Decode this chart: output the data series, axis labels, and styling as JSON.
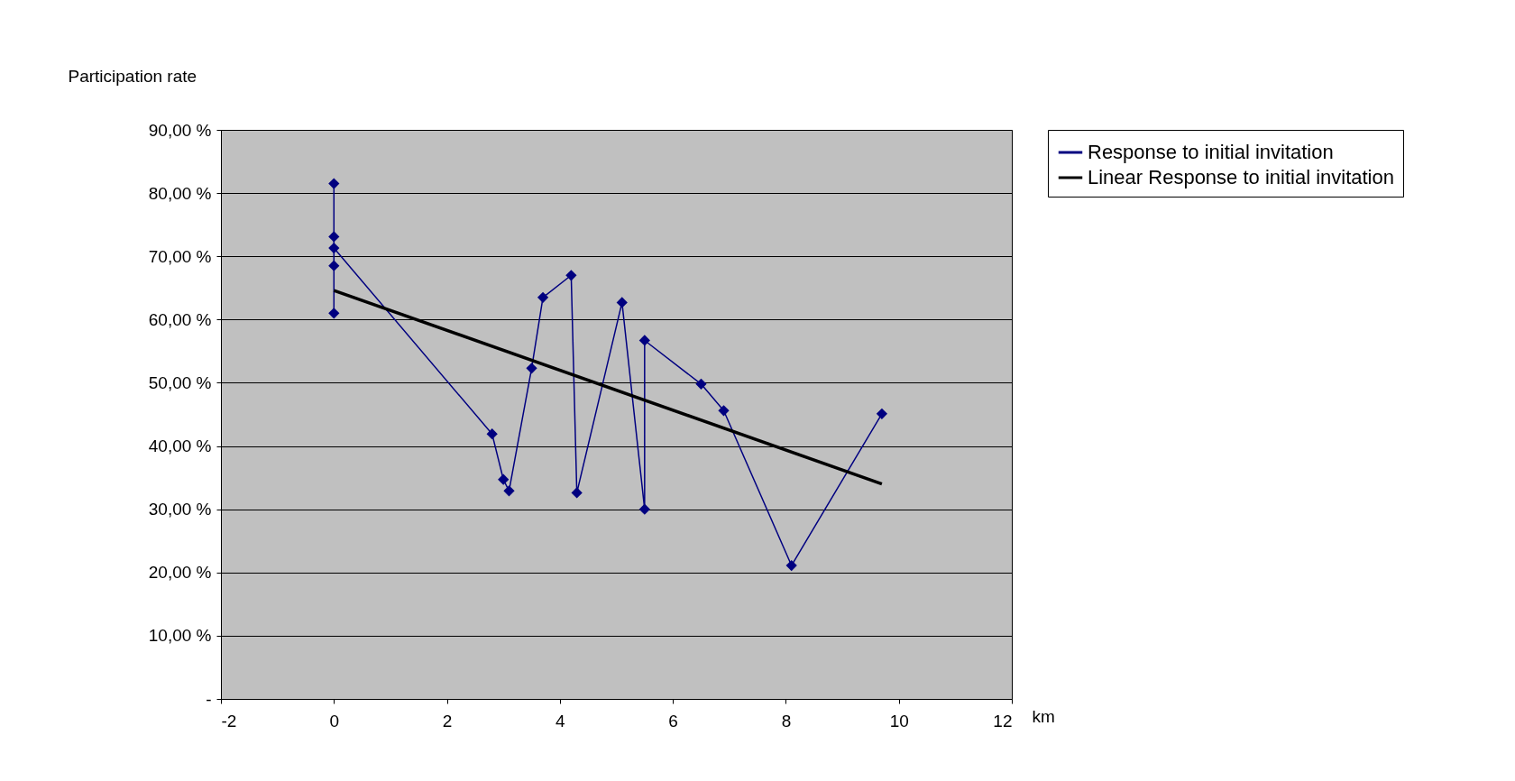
{
  "chart_data": {
    "type": "line",
    "xlabel": "km",
    "ylabel": "Participation rate",
    "xlim": [
      -2,
      12
    ],
    "xticks": [
      -2,
      0,
      2,
      4,
      6,
      8,
      10,
      12
    ],
    "ylim": [
      0,
      90
    ],
    "yticks": [
      {
        "value": 0,
        "label": "-"
      },
      {
        "value": 10,
        "label": "10,00 %"
      },
      {
        "value": 20,
        "label": "20,00 %"
      },
      {
        "value": 30,
        "label": "30,00 %"
      },
      {
        "value": 40,
        "label": "40,00 %"
      },
      {
        "value": 50,
        "label": "50,00 %"
      },
      {
        "value": 60,
        "label": "60,00 %"
      },
      {
        "value": 70,
        "label": "70,00 %"
      },
      {
        "value": 80,
        "label": "80,00 %"
      },
      {
        "value": 90,
        "label": "90,00 %"
      }
    ],
    "grid": "y",
    "legend": "right",
    "marker": "diamond",
    "line_style": "solid",
    "series": [
      {
        "name": "Response to initial invitation",
        "color": "#000080",
        "x": [
          0,
          0,
          0,
          0,
          0,
          2.8,
          3.0,
          3.1,
          3.5,
          3.7,
          4.2,
          4.3,
          5.1,
          5.5,
          5.5,
          6.5,
          6.9,
          8.1,
          9.7
        ],
        "values": [
          81.5,
          73.1,
          68.5,
          61.0,
          71.3,
          41.9,
          34.7,
          32.9,
          52.3,
          63.5,
          67.0,
          32.6,
          62.7,
          30.0,
          56.7,
          49.8,
          45.6,
          21.1,
          45.1
        ]
      },
      {
        "name": "Linear Response to initial invitation",
        "color": "#000000",
        "marker": "none",
        "x": [
          0,
          9.7
        ],
        "values": [
          64.6,
          34.0
        ]
      }
    ]
  }
}
